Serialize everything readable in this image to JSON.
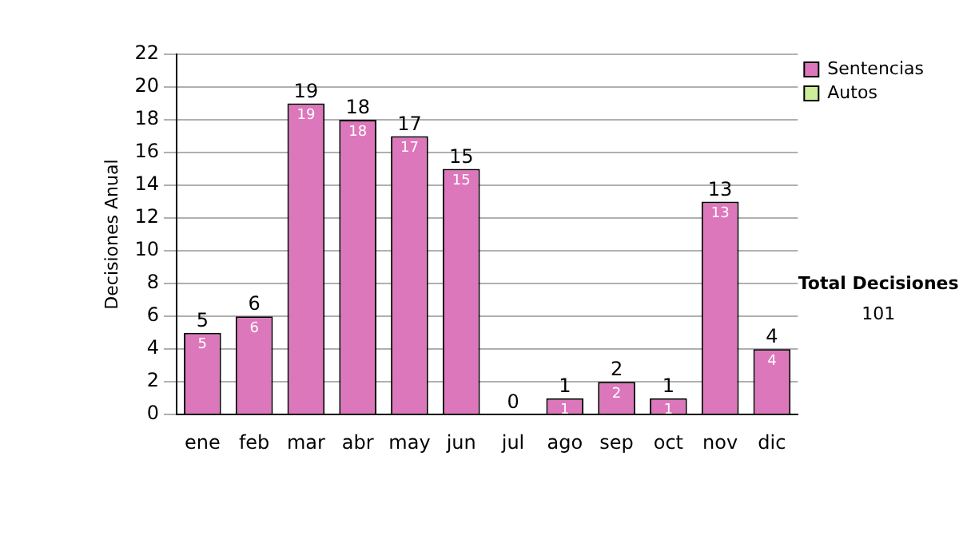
{
  "chart_data": {
    "type": "bar",
    "ylabel": "Decisiones Anual",
    "categories": [
      "ene",
      "feb",
      "mar",
      "abr",
      "may",
      "jun",
      "jul",
      "ago",
      "sep",
      "oct",
      "nov",
      "dic"
    ],
    "series": [
      {
        "name": "Sentencias",
        "color": "#dd77bb",
        "values": [
          5,
          6,
          19,
          18,
          17,
          15,
          0,
          1,
          2,
          1,
          13,
          4
        ],
        "value_labels": [
          "5",
          "6",
          "19",
          "18",
          "17",
          "15",
          null,
          "1",
          "2",
          "1",
          "13",
          "4"
        ]
      },
      {
        "name": "Autos",
        "color": "#ccee99",
        "values": [
          0,
          0,
          0,
          0,
          0,
          0,
          0,
          0,
          0,
          0,
          0,
          0
        ]
      }
    ],
    "stacked": true,
    "totals": [
      "5",
      "6",
      "19",
      "18",
      "17",
      "15",
      "0",
      "1",
      "2",
      "1",
      "13",
      "4"
    ],
    "ylim": [
      0,
      22
    ],
    "yticks": [
      0,
      2,
      4,
      6,
      8,
      10,
      12,
      14,
      16,
      18,
      20,
      22
    ],
    "grid": "y",
    "legend": "right",
    "annotations": [
      "Total Decisiones",
      "101"
    ]
  }
}
